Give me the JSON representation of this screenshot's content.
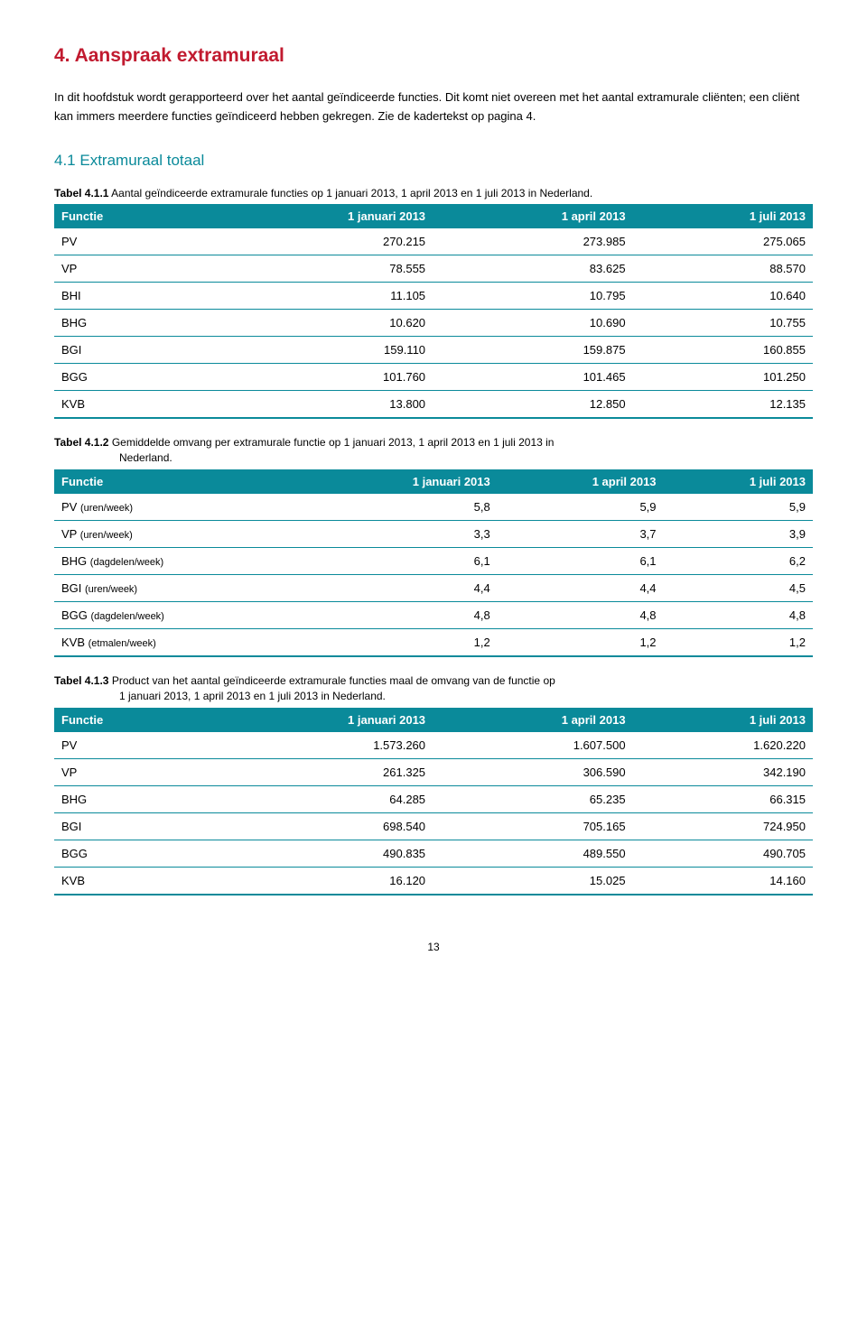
{
  "heading": "4. Aanspraak extramuraal",
  "intro": "In dit hoofdstuk wordt gerapporteerd over het aantal geïndiceerde functies. Dit komt niet overeen met het aantal extramurale cliënten; een cliënt kan immers meerdere functies geïndiceerd hebben gekregen. Zie de kadertekst op pagina 4.",
  "subheading": "4.1 Extramuraal totaal",
  "table1": {
    "caption_lead": "Tabel 4.1.1",
    "caption_rest": " Aantal geïndiceerde extramurale functies op 1 januari 2013, 1 april 2013 en 1 juli 2013 in Nederland.",
    "columns": [
      "Functie",
      "1 januari 2013",
      "1 april 2013",
      "1 juli 2013"
    ],
    "rows": [
      [
        "PV",
        "270.215",
        "273.985",
        "275.065"
      ],
      [
        "VP",
        "78.555",
        "83.625",
        "88.570"
      ],
      [
        "BHI",
        "11.105",
        "10.795",
        "10.640"
      ],
      [
        "BHG",
        "10.620",
        "10.690",
        "10.755"
      ],
      [
        "BGI",
        "159.110",
        "159.875",
        "160.855"
      ],
      [
        "BGG",
        "101.760",
        "101.465",
        "101.250"
      ],
      [
        "KVB",
        "13.800",
        "12.850",
        "12.135"
      ]
    ]
  },
  "table2": {
    "caption_lead": "Tabel 4.1.2",
    "caption_rest": " Gemiddelde omvang per extramurale functie op 1 januari 2013, 1 april 2013 en 1 juli 2013 in",
    "caption_sub": "Nederland.",
    "columns": [
      "Functie",
      "1 januari 2013",
      "1 april 2013",
      "1 juli 2013"
    ],
    "rows": [
      [
        "PV <span class='sm'>(uren/week)</span>",
        "5,8",
        "5,9",
        "5,9"
      ],
      [
        "VP <span class='sm'>(uren/week)</span>",
        "3,3",
        "3,7",
        "3,9"
      ],
      [
        "BHG <span class='sm'>(dagdelen/week)</span>",
        "6,1",
        "6,1",
        "6,2"
      ],
      [
        "BGI <span class='sm'>(uren/week)</span>",
        "4,4",
        "4,4",
        "4,5"
      ],
      [
        "BGG <span class='sm'>(dagdelen/week)</span>",
        "4,8",
        "4,8",
        "4,8"
      ],
      [
        "KVB <span class='sm'>(etmalen/week)</span>",
        "1,2",
        "1,2",
        "1,2"
      ]
    ]
  },
  "table3": {
    "caption_lead": "Tabel 4.1.3",
    "caption_rest": " Product van het aantal geïndiceerde extramurale functies maal de omvang van de functie op",
    "caption_sub": "1 januari 2013, 1 april 2013 en 1 juli 2013 in Nederland.",
    "columns": [
      "Functie",
      "1 januari 2013",
      "1 april 2013",
      "1 juli 2013"
    ],
    "rows": [
      [
        "PV",
        "1.573.260",
        "1.607.500",
        "1.620.220"
      ],
      [
        "VP",
        "261.325",
        "306.590",
        "342.190"
      ],
      [
        "BHG",
        "64.285",
        "65.235",
        "66.315"
      ],
      [
        "BGI",
        "698.540",
        "705.165",
        "724.950"
      ],
      [
        "BGG",
        "490.835",
        "489.550",
        "490.705"
      ],
      [
        "KVB",
        "16.120",
        "15.025",
        "14.160"
      ]
    ]
  },
  "page_num": "13",
  "colors": {
    "heading": "#c11a2f",
    "accent": "#0a8a9a",
    "header_bg": "#0a8a9a",
    "header_text": "#ffffff",
    "body_text": "#000000",
    "background": "#ffffff"
  }
}
